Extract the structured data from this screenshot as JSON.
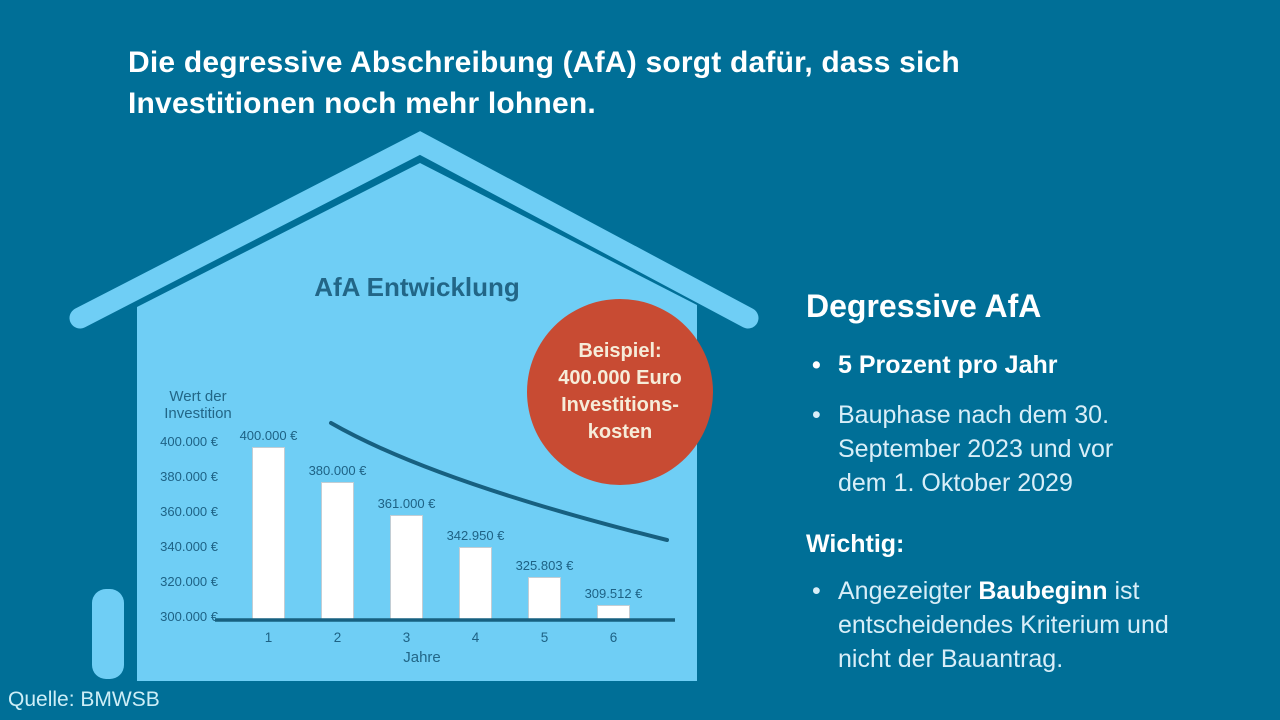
{
  "background": {
    "color": "#006f97"
  },
  "headline": {
    "line1": "Die degressive Abschreibung (AfA) sorgt dafür, dass sich",
    "line2": "Investitionen noch mehr lohnen."
  },
  "house": {
    "color": "#6fcef5"
  },
  "badge": {
    "color": "#c84b33",
    "text_color": "#f6ecd9",
    "lines": [
      "Beispiel:",
      "400.000 Euro",
      "Investitions-",
      "kosten"
    ]
  },
  "chart_data": {
    "type": "bar",
    "title": "AfA Entwicklung",
    "ylabel": "Wert der Investition",
    "xlabel": "Jahre",
    "categories": [
      "1",
      "2",
      "3",
      "4",
      "5",
      "6"
    ],
    "values": [
      400000,
      380000,
      361000,
      342950,
      325803,
      309512
    ],
    "bar_labels": [
      "400.000 €",
      "380.000 €",
      "361.000 €",
      "342.950 €",
      "325.803 €",
      "309.512 €"
    ],
    "ytick_labels": [
      "400.000 €",
      "380.000 €",
      "360.000 €",
      "340.000 €",
      "320.000 €",
      "300.000 €"
    ],
    "ytick_values": [
      400000,
      380000,
      360000,
      340000,
      320000,
      300000
    ],
    "ylim": [
      298000,
      410000
    ],
    "grid": false,
    "legend": false,
    "bar_color": "#ffffff",
    "axis_color": "#176080",
    "trend_line": "decreasing concave curve above bars"
  },
  "panel": {
    "heading": "Degressive AfA",
    "bullet_char": "•",
    "bullet1": "5 Prozent pro Jahr",
    "bullet2": "Bauphase nach dem 30. September 2023 und vor dem 1. Oktober 2029",
    "important": {
      "heading": "Wichtig:",
      "pre": "Angezeigter ",
      "bold": "Baubeginn",
      "post": " ist entscheidendes Kriterium und nicht der Bauantrag."
    }
  },
  "footer": {
    "source": "Quelle: BMWSB"
  }
}
